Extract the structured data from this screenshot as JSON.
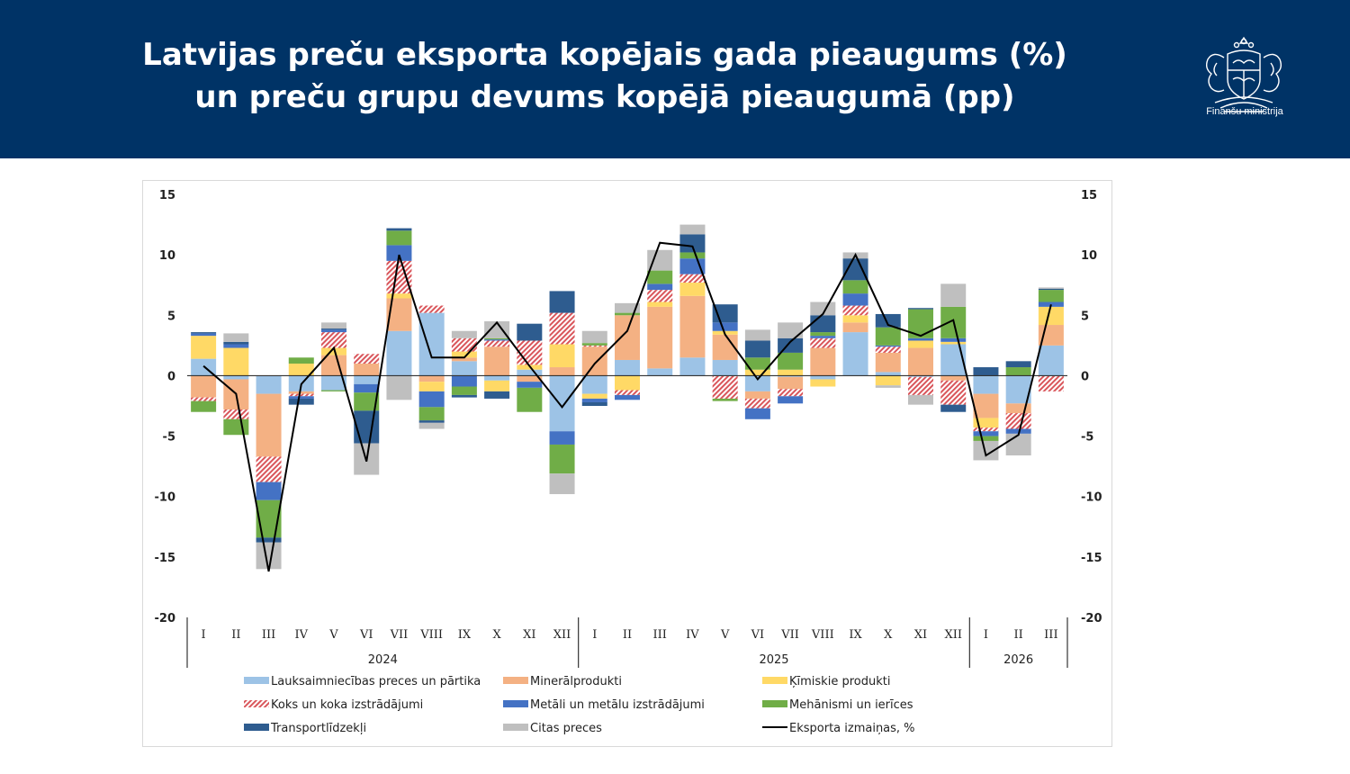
{
  "header": {
    "title_line1": "Latvijas preču eksporta kopējais gada pieaugums (%)",
    "title_line2": "un preču grupu devums kopējā pieaugumā (pp)",
    "logo_text": "Finanšu ministrija",
    "background": "#003366"
  },
  "chart_data": {
    "type": "bar",
    "stacked": true,
    "categories": [
      "I",
      "II",
      "III",
      "IV",
      "V",
      "VI",
      "VII",
      "VIII",
      "IX",
      "X",
      "XI",
      "XII",
      "I",
      "II",
      "III",
      "IV",
      "V",
      "VI",
      "VII",
      "VIII",
      "IX",
      "X",
      "XI",
      "XII",
      "I",
      "II",
      "III"
    ],
    "years": [
      {
        "label": "2024",
        "start": 0,
        "end": 11
      },
      {
        "label": "2025",
        "start": 12,
        "end": 23
      },
      {
        "label": "2026",
        "start": 24,
        "end": 26
      }
    ],
    "ylim": [
      -20,
      15
    ],
    "yticks": [
      -20,
      -15,
      -10,
      -5,
      0,
      5,
      10,
      15
    ],
    "grid": false,
    "legend_position": "bottom",
    "series": [
      {
        "name": "Lauksaimniecības preces un pārtika",
        "color": "#9dc3e6",
        "values": [
          1.4,
          -0.3,
          -1.5,
          -1.3,
          -1.2,
          -0.7,
          3.7,
          5.2,
          1.2,
          -0.4,
          0.5,
          -4.6,
          -1.5,
          1.3,
          0.6,
          1.5,
          1.3,
          -1.3,
          -0.1,
          -0.3,
          3.6,
          0.3,
          -0.1,
          2.6,
          -1.5,
          -2.3,
          2.5
        ]
      },
      {
        "name": "Minerālprodukti",
        "color": "#f4b183",
        "values": [
          -1.8,
          -2.5,
          -5.2,
          -0.2,
          1.7,
          1.0,
          2.7,
          -0.5,
          0.3,
          2.4,
          -0.5,
          0.7,
          2.4,
          3.7,
          5.1,
          5.1,
          2.1,
          -0.6,
          -1.0,
          2.3,
          0.8,
          1.6,
          2.3,
          -0.4,
          -2.0,
          -0.8,
          1.7
        ]
      },
      {
        "name": "Ķīmiskie produkti",
        "color": "#ffd966",
        "values": [
          1.9,
          2.3,
          0,
          1.0,
          0.6,
          0,
          0.4,
          -0.8,
          0.5,
          -0.9,
          0.4,
          1.9,
          -0.4,
          -1.2,
          0.4,
          1.1,
          0.3,
          0.5,
          0.5,
          -0.6,
          0.6,
          -0.8,
          0.6,
          0.2,
          -0.8,
          0,
          1.5
        ]
      },
      {
        "name": "Koks un koka izstrādājumi",
        "color": "#d9565b",
        "pattern": "hatch",
        "values": [
          -0.3,
          -0.8,
          -2.1,
          -0.2,
          1.3,
          0.8,
          2.7,
          0.6,
          1.1,
          0.5,
          2.0,
          2.6,
          0.1,
          -0.4,
          1.0,
          0.7,
          -1.9,
          -0.8,
          -0.6,
          0.8,
          0.8,
          0.5,
          -1.5,
          -2.0,
          -0.3,
          -1.3,
          -1.3
        ]
      },
      {
        "name": "Metāli un metālu izstrādājumi",
        "color": "#4472c4",
        "values": [
          0.2,
          0.3,
          -1.5,
          -0.2,
          0.2,
          -0.7,
          1.3,
          -1.3,
          -0.9,
          0.1,
          -0.5,
          -1.1,
          -0.3,
          -0.4,
          0.5,
          1.3,
          0.7,
          -0.9,
          -0.6,
          0.2,
          1.0,
          0.1,
          0.2,
          0.3,
          -0.4,
          -0.4,
          0.4
        ]
      },
      {
        "name": "Mehānismi un ierīces",
        "color": "#70ad47",
        "values": [
          -0.9,
          -1.3,
          -3.1,
          0.5,
          -0.1,
          -1.5,
          1.2,
          -1.1,
          -0.7,
          0.1,
          -2.0,
          -2.4,
          0.2,
          0.2,
          1.1,
          0.5,
          -0.2,
          1.0,
          1.4,
          0.3,
          1.1,
          1.5,
          2.4,
          2.6,
          -0.4,
          0.7,
          1.0
        ]
      },
      {
        "name": "Transportlīdzekļi",
        "color": "#2e5c8f",
        "values": [
          0.1,
          0.2,
          -0.4,
          -0.5,
          0.1,
          -2.7,
          0.2,
          -0.2,
          -0.2,
          -0.6,
          1.4,
          1.8,
          -0.3,
          0,
          0,
          1.5,
          1.5,
          1.4,
          1.2,
          1.4,
          1.8,
          1.1,
          0.1,
          -0.6,
          0.7,
          0.5,
          0.1
        ]
      },
      {
        "name": "Citas preces",
        "color": "#bfbfbf",
        "values": [
          0,
          0.7,
          -2.2,
          0,
          0.5,
          -2.6,
          -2.0,
          -0.5,
          0.6,
          1.4,
          0,
          -1.7,
          1.0,
          0.8,
          1.7,
          0.8,
          0,
          0.9,
          1.3,
          1.1,
          0.5,
          -0.2,
          -0.8,
          1.9,
          -1.6,
          -1.8,
          0.1
        ]
      }
    ],
    "line": {
      "name": "Eksporta izmaiņas, %",
      "color": "#000000",
      "values": [
        0.8,
        -1.5,
        -16.2,
        -0.7,
        2.3,
        -7.1,
        10.0,
        1.5,
        1.5,
        4.4,
        0.8,
        -2.6,
        1.0,
        3.7,
        11.0,
        10.7,
        3.4,
        -0.3,
        2.8,
        5.1,
        10.0,
        4.2,
        3.3,
        4.6,
        -6.6,
        -4.9,
        5.9
      ]
    }
  }
}
